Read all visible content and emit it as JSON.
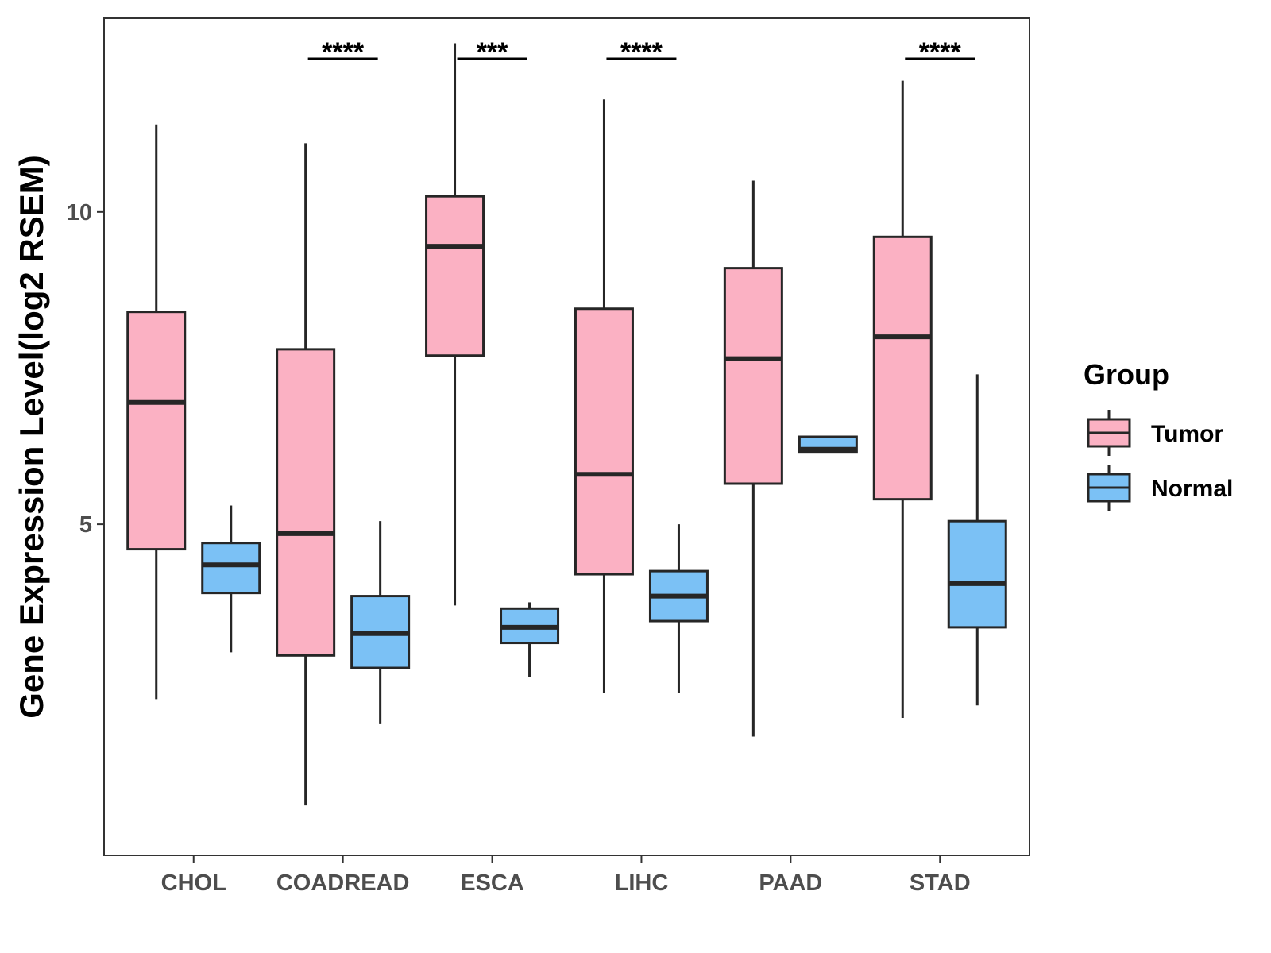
{
  "chart_data": {
    "type": "boxplot",
    "title": "",
    "xlabel": "",
    "ylabel": "Gene Expression Level(log2 RSEM)",
    "ylim": [
      -0.3,
      13.1
    ],
    "yticks": [
      5,
      10
    ],
    "categories": [
      "CHOL",
      "COADREAD",
      "ESCA",
      "LIHC",
      "PAAD",
      "STAD"
    ],
    "series": [
      {
        "name": "Tumor",
        "color": "#fbb1c3",
        "boxes": [
          {
            "category": "CHOL",
            "min": 2.2,
            "q1": 4.6,
            "median": 6.95,
            "q3": 8.4,
            "max": 11.4
          },
          {
            "category": "COADREAD",
            "min": 0.5,
            "q1": 2.9,
            "median": 4.85,
            "q3": 7.8,
            "max": 11.1
          },
          {
            "category": "ESCA",
            "min": 3.7,
            "q1": 7.7,
            "median": 9.45,
            "q3": 10.25,
            "max": 12.7
          },
          {
            "category": "LIHC",
            "min": 2.3,
            "q1": 4.2,
            "median": 5.8,
            "q3": 8.45,
            "max": 11.8
          },
          {
            "category": "PAAD",
            "min": 1.6,
            "q1": 5.65,
            "median": 7.65,
            "q3": 9.1,
            "max": 10.5
          },
          {
            "category": "STAD",
            "min": 1.9,
            "q1": 5.4,
            "median": 8.0,
            "q3": 9.6,
            "max": 12.1
          }
        ]
      },
      {
        "name": "Normal",
        "color": "#7bc1f5",
        "boxes": [
          {
            "category": "CHOL",
            "min": 2.95,
            "q1": 3.9,
            "median": 4.35,
            "q3": 4.7,
            "max": 5.3
          },
          {
            "category": "COADREAD",
            "min": 1.8,
            "q1": 2.7,
            "median": 3.25,
            "q3": 3.85,
            "max": 5.05
          },
          {
            "category": "ESCA",
            "min": 2.55,
            "q1": 3.1,
            "median": 3.35,
            "q3": 3.65,
            "max": 3.75
          },
          {
            "category": "LIHC",
            "min": 2.3,
            "q1": 3.45,
            "median": 3.85,
            "q3": 4.25,
            "max": 5.0
          },
          {
            "category": "PAAD",
            "min": 6.15,
            "q1": 6.15,
            "median": 6.2,
            "q3": 6.4,
            "max": 6.4
          },
          {
            "category": "STAD",
            "min": 2.1,
            "q1": 3.35,
            "median": 4.05,
            "q3": 5.05,
            "max": 7.4
          }
        ]
      }
    ],
    "significance": [
      {
        "category": "COADREAD",
        "label": "****"
      },
      {
        "category": "ESCA",
        "label": "***"
      },
      {
        "category": "LIHC",
        "label": "****"
      },
      {
        "category": "STAD",
        "label": "****"
      }
    ],
    "legend": {
      "title": "Group",
      "position": "right",
      "entries": [
        "Tumor",
        "Normal"
      ]
    },
    "grid": false
  }
}
